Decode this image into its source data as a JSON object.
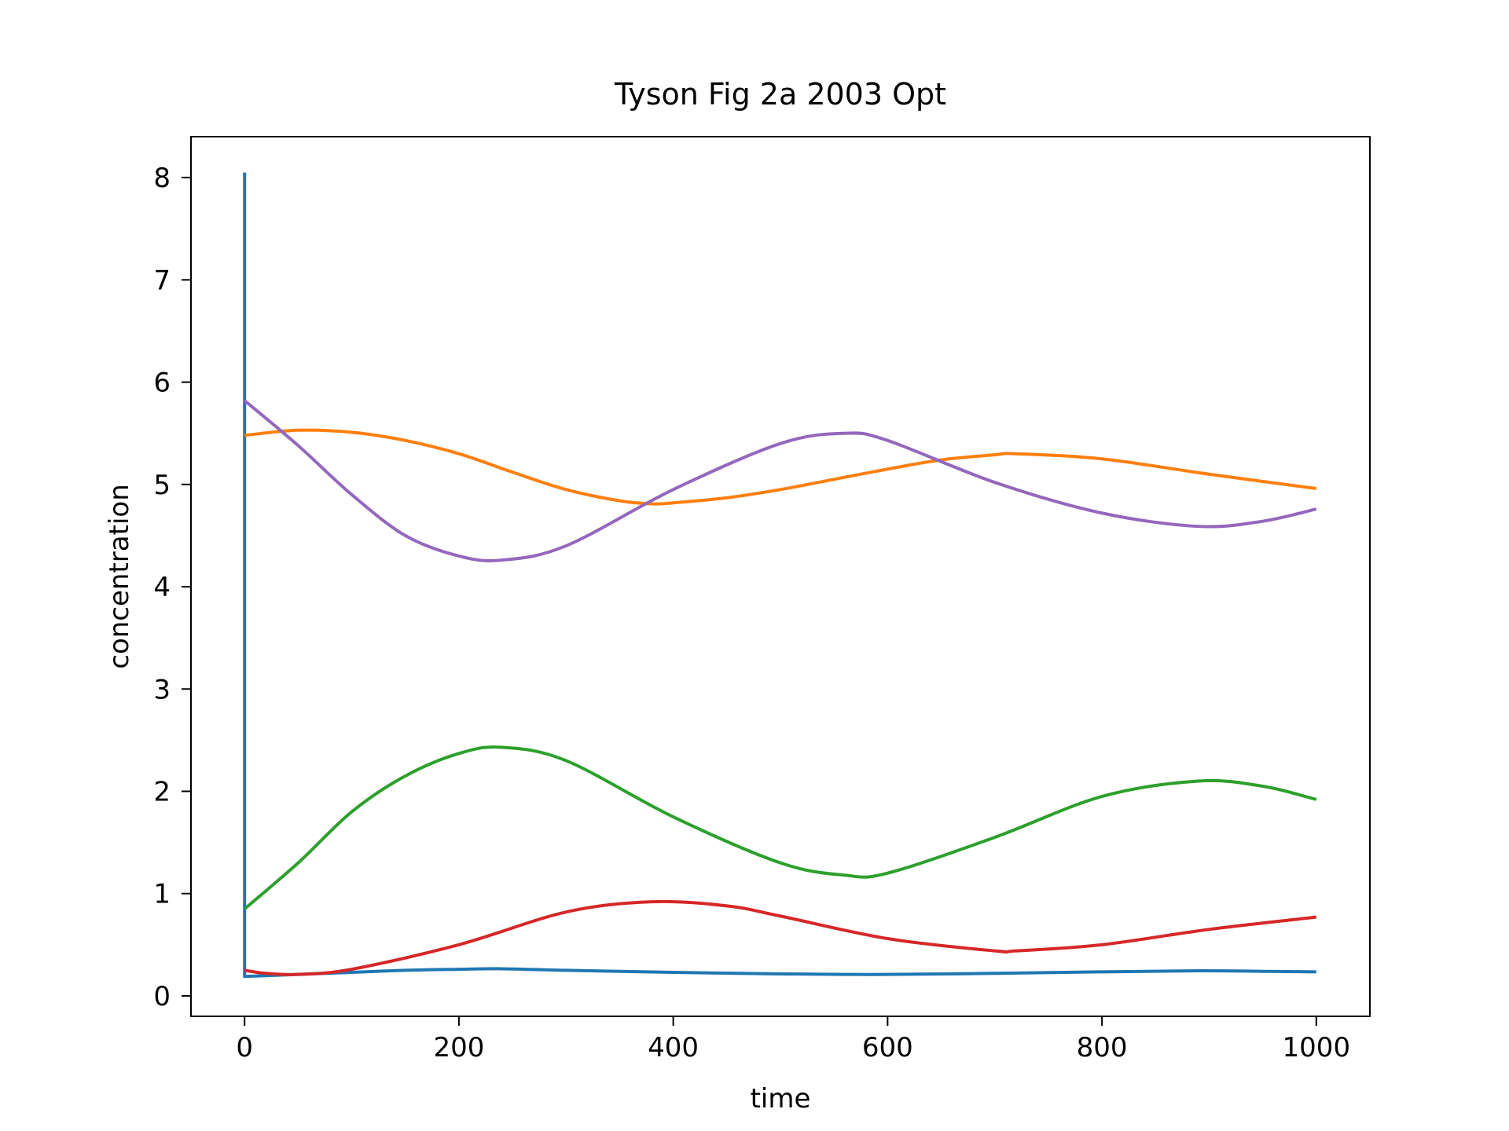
{
  "chart_data": {
    "type": "line",
    "title": "Tyson Fig 2a 2003 Opt",
    "xlabel": "time",
    "ylabel": "concentration",
    "xlim": [
      -50,
      1050
    ],
    "ylim": [
      -0.2,
      8.4
    ],
    "grid": false,
    "legend": "none",
    "x_ticks": [
      0,
      200,
      400,
      600,
      800,
      1000
    ],
    "x_tick_labels": [
      "0",
      "200",
      "400",
      "600",
      "800",
      "1000"
    ],
    "y_ticks": [
      0,
      1,
      2,
      3,
      4,
      5,
      6,
      7,
      8
    ],
    "y_tick_labels": [
      "0",
      "1",
      "2",
      "3",
      "4",
      "5",
      "6",
      "7",
      "8"
    ],
    "series": [
      {
        "color": "#1f77b4",
        "x": [
          0,
          0,
          0,
          50,
          100,
          150,
          200,
          240,
          300,
          400,
          500,
          560,
          600,
          700,
          800,
          890,
          950,
          1000
        ],
        "y": [
          8.05,
          0.2,
          0.19,
          0.21,
          0.23,
          0.25,
          0.26,
          0.265,
          0.25,
          0.23,
          0.215,
          0.21,
          0.21,
          0.22,
          0.235,
          0.245,
          0.24,
          0.235
        ]
      },
      {
        "color": "#ff7f0e",
        "x": [
          0,
          50,
          100,
          150,
          200,
          250,
          300,
          350,
          380,
          400,
          450,
          500,
          550,
          600,
          650,
          700,
          720,
          800,
          900,
          1000
        ],
        "y": [
          5.48,
          5.53,
          5.51,
          5.43,
          5.3,
          5.12,
          4.95,
          4.84,
          4.81,
          4.82,
          4.87,
          4.95,
          5.05,
          5.15,
          5.24,
          5.29,
          5.3,
          5.25,
          5.1,
          4.96
        ]
      },
      {
        "color": "#2ca02c",
        "x": [
          0,
          50,
          100,
          150,
          200,
          240,
          300,
          400,
          500,
          560,
          600,
          700,
          800,
          890,
          950,
          1000
        ],
        "y": [
          0.85,
          1.3,
          1.8,
          2.15,
          2.37,
          2.43,
          2.3,
          1.75,
          1.3,
          1.18,
          1.2,
          1.55,
          1.95,
          2.1,
          2.05,
          1.92
        ]
      },
      {
        "color": "#d62728",
        "x": [
          0,
          20,
          50,
          100,
          200,
          300,
          380,
          450,
          500,
          600,
          700,
          720,
          800,
          900,
          1000
        ],
        "y": [
          0.25,
          0.22,
          0.21,
          0.26,
          0.5,
          0.82,
          0.92,
          0.88,
          0.78,
          0.56,
          0.44,
          0.44,
          0.5,
          0.65,
          0.77
        ]
      },
      {
        "color": "#9467bd",
        "x": [
          0,
          50,
          100,
          150,
          200,
          240,
          300,
          400,
          500,
          560,
          600,
          700,
          800,
          890,
          950,
          1000
        ],
        "y": [
          5.82,
          5.38,
          4.9,
          4.5,
          4.3,
          4.26,
          4.4,
          4.95,
          5.4,
          5.5,
          5.43,
          5.02,
          4.72,
          4.59,
          4.64,
          4.76
        ]
      }
    ]
  }
}
